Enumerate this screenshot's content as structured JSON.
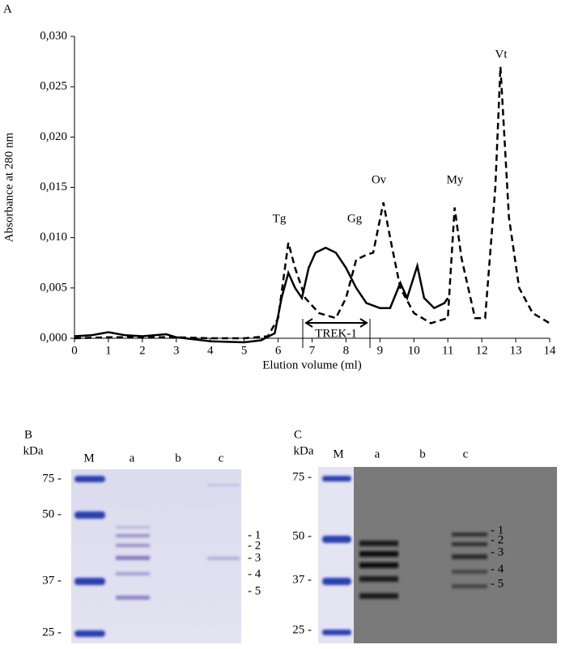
{
  "chart_data": {
    "type": "line",
    "panel": "A",
    "xlabel": "Elution volume (ml)",
    "ylabel": "Absorbance at 280 nm",
    "xlim": [
      0,
      14
    ],
    "xticks": [
      0,
      1,
      2,
      3,
      4,
      5,
      6,
      7,
      8,
      9,
      10,
      11,
      12,
      13,
      14
    ],
    "ylim": [
      0,
      0.03
    ],
    "yticks": [
      {
        "value": 0,
        "label": "0,000"
      },
      {
        "value": 0.005,
        "label": "0,005"
      },
      {
        "value": 0.01,
        "label": "0,010"
      },
      {
        "value": 0.015,
        "label": "0,015"
      },
      {
        "value": 0.02,
        "label": "0,020"
      },
      {
        "value": 0.025,
        "label": "0,025"
      },
      {
        "value": 0.03,
        "label": "0,030"
      }
    ],
    "series": [
      {
        "color": "#000000",
        "line_style": "solid",
        "x": [
          0,
          0.5,
          1,
          1.5,
          2,
          2.7,
          3,
          4,
          5,
          5.5,
          5.9,
          6.1,
          6.3,
          6.5,
          6.7,
          6.9,
          7.1,
          7.4,
          7.7,
          8.0,
          8.3,
          8.6,
          9.0,
          9.3,
          9.6,
          9.8,
          10.1,
          10.3,
          10.6,
          10.9,
          11.0
        ],
        "values": [
          0.0002,
          0.0003,
          0.0006,
          0.0003,
          0.0002,
          0.0004,
          0.0001,
          -0.0003,
          -0.0004,
          -0.0002,
          0.0005,
          0.004,
          0.0065,
          0.005,
          0.004,
          0.007,
          0.0085,
          0.009,
          0.0085,
          0.007,
          0.005,
          0.0035,
          0.003,
          0.003,
          0.0055,
          0.004,
          0.0072,
          0.004,
          0.003,
          0.0035,
          0.004
        ]
      },
      {
        "color": "#000000",
        "line_style": "dashed",
        "x": [
          0,
          1,
          2,
          3,
          4,
          5,
          5.7,
          6.0,
          6.3,
          6.5,
          6.8,
          7.2,
          7.7,
          8.0,
          8.3,
          8.6,
          8.8,
          9.1,
          9.3,
          9.6,
          10.0,
          10.5,
          11.0,
          11.2,
          11.4,
          11.8,
          12.1,
          12.4,
          12.55,
          12.8,
          13.1,
          13.5,
          14
        ],
        "values": [
          0,
          0.0001,
          0.0001,
          0.0001,
          0,
          0,
          0.0002,
          0.002,
          0.0095,
          0.007,
          0.004,
          0.0025,
          0.002,
          0.004,
          0.0078,
          0.0083,
          0.0085,
          0.0135,
          0.01,
          0.005,
          0.0025,
          0.0015,
          0.002,
          0.013,
          0.008,
          0.002,
          0.002,
          0.015,
          0.027,
          0.012,
          0.005,
          0.0025,
          0.0015
        ]
      }
    ],
    "annotations": [
      "Tg",
      "Gg",
      "Ov",
      "My",
      "Vt",
      "TREK-1"
    ]
  },
  "gels": [
    {
      "panel": "B",
      "unit": "kDa",
      "lanes": [
        "M",
        "a",
        "b",
        "c"
      ],
      "markers": [
        "75 -",
        "50 -",
        "37 -",
        "25 -"
      ],
      "bands": [
        "- 1",
        "- 2",
        "- 3",
        "- 4",
        "- 5"
      ]
    },
    {
      "panel": "C",
      "unit": "kDa",
      "lanes": [
        "M",
        "a",
        "b",
        "c"
      ],
      "markers": [
        "75 -",
        "50 -",
        "37 -",
        "25 -"
      ],
      "bands": [
        "- 1",
        "- 2",
        "- 3",
        "- 4",
        "- 5"
      ]
    }
  ]
}
